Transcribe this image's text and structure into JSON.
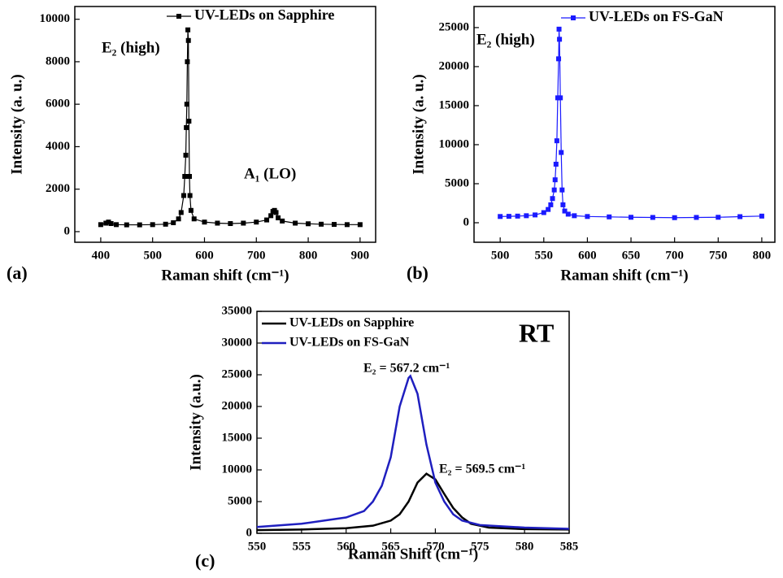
{
  "chart_data": [
    {
      "type": "line",
      "panel_label": "(a)",
      "xlabel": "Raman shift (cm⁻¹)",
      "ylabel": "Intensity (a. u.)",
      "xlim": [
        350,
        930
      ],
      "ylim": [
        -500,
        10600
      ],
      "xticks": [
        400,
        500,
        600,
        700,
        800,
        900
      ],
      "yticks": [
        0,
        2000,
        4000,
        6000,
        8000,
        10000
      ],
      "legend": "upper right",
      "series": [
        {
          "name": "UV-LEDs on Sapphire",
          "color": "#000000",
          "marker": "square",
          "x": [
            400,
            410,
            415,
            420,
            430,
            450,
            475,
            500,
            525,
            540,
            550,
            555,
            560,
            562,
            564,
            565,
            566,
            567,
            568,
            569,
            570,
            571,
            572,
            574,
            580,
            600,
            625,
            650,
            675,
            700,
            720,
            728,
            732,
            735,
            738,
            742,
            750,
            775,
            800,
            825,
            850,
            875,
            900
          ],
          "values": [
            330,
            400,
            450,
            380,
            330,
            320,
            320,
            330,
            350,
            420,
            600,
            900,
            1700,
            2600,
            3600,
            4900,
            6000,
            8000,
            9500,
            9000,
            5200,
            2600,
            1700,
            1000,
            600,
            450,
            400,
            380,
            400,
            450,
            550,
            750,
            950,
            1000,
            900,
            650,
            500,
            400,
            370,
            350,
            340,
            330,
            330
          ]
        }
      ],
      "annotations": [
        {
          "text": "E₂ (high)"
        },
        {
          "text": "A₁ (LO)"
        }
      ]
    },
    {
      "type": "line",
      "panel_label": "(b)",
      "xlabel": "Raman shift (cm⁻¹)",
      "ylabel": "Intensity (a. u.)",
      "xlim": [
        470,
        815
      ],
      "ylim": [
        -2500,
        27700
      ],
      "xticks": [
        500,
        550,
        600,
        650,
        700,
        750,
        800
      ],
      "yticks": [
        0,
        5000,
        10000,
        15000,
        20000,
        25000
      ],
      "legend": "upper right",
      "series": [
        {
          "name": "UV-LEDs on FS-GaN",
          "color": "#1a1aff",
          "marker": "square",
          "x": [
            500,
            510,
            520,
            530,
            540,
            550,
            555,
            558,
            560,
            562,
            563,
            564,
            565,
            566,
            567,
            567.5,
            568,
            569,
            570,
            571,
            572,
            574,
            578,
            585,
            600,
            625,
            650,
            675,
            700,
            725,
            750,
            775,
            800
          ],
          "values": [
            800,
            820,
            850,
            900,
            1000,
            1300,
            1700,
            2300,
            3100,
            4200,
            5500,
            7500,
            10500,
            16000,
            21000,
            24800,
            23500,
            16000,
            9000,
            4200,
            2300,
            1500,
            1100,
            900,
            800,
            750,
            700,
            680,
            650,
            680,
            700,
            780,
            850
          ]
        }
      ],
      "annotations": [
        {
          "text": "E₂ (high)"
        }
      ]
    },
    {
      "type": "line",
      "panel_label": "(c)",
      "xlabel": "Raman Shift (cm⁻¹)",
      "ylabel": "Intensity (a.u.)",
      "xlim": [
        550,
        585
      ],
      "ylim": [
        0,
        35000
      ],
      "xticks": [
        550,
        555,
        560,
        565,
        570,
        575,
        580,
        585
      ],
      "yticks": [
        0,
        5000,
        10000,
        15000,
        20000,
        25000,
        30000,
        35000
      ],
      "legend": "upper left",
      "series": [
        {
          "name": "UV-LEDs on Sapphire",
          "color": "#000000",
          "x": [
            550,
            555,
            560,
            563,
            565,
            566,
            567,
            568,
            569,
            570,
            571,
            572,
            573,
            574,
            576,
            580,
            585
          ],
          "values": [
            500,
            600,
            800,
            1200,
            2000,
            3000,
            5000,
            8000,
            9400,
            8500,
            6200,
            4000,
            2500,
            1500,
            900,
            650,
            600
          ]
        },
        {
          "name": "UV-LEDs on FS-GaN",
          "color": "#1f1fbf",
          "x": [
            550,
            555,
            560,
            562,
            563,
            564,
            565,
            566,
            567,
            567.2,
            568,
            569,
            570,
            571,
            572,
            573,
            575,
            580,
            585
          ],
          "values": [
            1000,
            1500,
            2500,
            3500,
            5000,
            7500,
            12000,
            20000,
            24500,
            24800,
            22000,
            14000,
            8000,
            5000,
            3000,
            2000,
            1300,
            900,
            700
          ]
        }
      ],
      "annotations": [
        {
          "text": "RT"
        },
        {
          "text": "E₂ = 567.2 cm⁻¹",
          "color": "#1f1fbf"
        },
        {
          "text": "E₂ = 569.5 cm⁻¹"
        }
      ]
    }
  ]
}
